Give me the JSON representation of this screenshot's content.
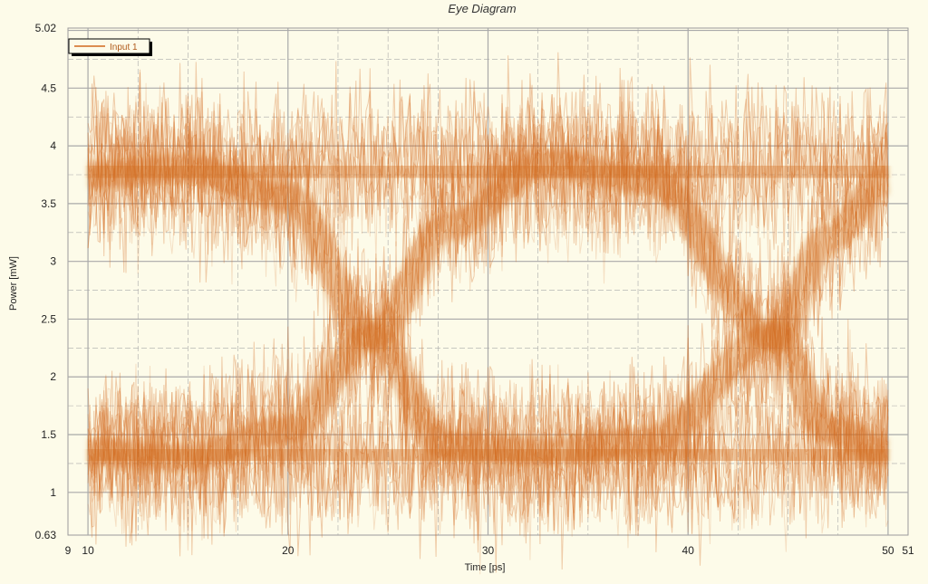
{
  "chart_data": {
    "type": "line",
    "title": "Eye Diagram",
    "xlabel": "Time [ps]",
    "ylabel": "Power [mW]",
    "xlim": [
      9,
      51
    ],
    "ylim": [
      0.63,
      5.02
    ],
    "x_ticks": [
      {
        "value": 9,
        "label": "9"
      },
      {
        "value": 10,
        "label": "10"
      },
      {
        "value": 20,
        "label": "20"
      },
      {
        "value": 30,
        "label": "30"
      },
      {
        "value": 40,
        "label": "40"
      },
      {
        "value": 50,
        "label": "50"
      },
      {
        "value": 51,
        "label": "51"
      }
    ],
    "y_ticks": [
      {
        "value": 0.63,
        "label": "0.63"
      },
      {
        "value": 1,
        "label": "1"
      },
      {
        "value": 1.5,
        "label": "1.5"
      },
      {
        "value": 2,
        "label": "2"
      },
      {
        "value": 2.5,
        "label": "2.5"
      },
      {
        "value": 3,
        "label": "3"
      },
      {
        "value": 3.5,
        "label": "3.5"
      },
      {
        "value": 4,
        "label": "4"
      },
      {
        "value": 4.5,
        "label": "4.5"
      },
      {
        "value": 5.02,
        "label": "5.02"
      }
    ],
    "grid": true,
    "legend_position": "top-left",
    "series": [
      {
        "name": "Input 1",
        "color": "#d2691e",
        "high_level": 3.8,
        "low_level": 1.35,
        "crossing_level": 2.35,
        "crossing_times": [
          24.2,
          44.3
        ],
        "x_span": [
          10,
          50
        ],
        "traces": [
          {
            "label": "high-to-low-to-high",
            "x": [
              10,
              15,
              20,
              24.2,
              28,
              33,
              38,
              44.3,
              47,
              50
            ],
            "y": [
              3.75,
              3.8,
              3.55,
              2.35,
              1.4,
              1.35,
              1.45,
              2.35,
              3.2,
              3.7
            ]
          },
          {
            "label": "low-to-high-to-low",
            "x": [
              10,
              15,
              20,
              24.2,
              28,
              33,
              38,
              44.3,
              47,
              50
            ],
            "y": [
              1.35,
              1.3,
              1.55,
              2.35,
              3.3,
              3.85,
              3.7,
              2.35,
              1.55,
              1.35
            ]
          },
          {
            "label": "steady-high",
            "x": [
              10,
              20,
              30,
              40,
              50
            ],
            "y": [
              3.8,
              3.75,
              3.8,
              3.75,
              3.8
            ]
          },
          {
            "label": "steady-low",
            "x": [
              10,
              20,
              30,
              40,
              50
            ],
            "y": [
              1.35,
              1.3,
              1.35,
              1.3,
              1.35
            ]
          }
        ]
      }
    ],
    "colors": {
      "background": "#fdfbe9",
      "grid": "#a9a9a9",
      "trace": "#d2691e"
    }
  }
}
